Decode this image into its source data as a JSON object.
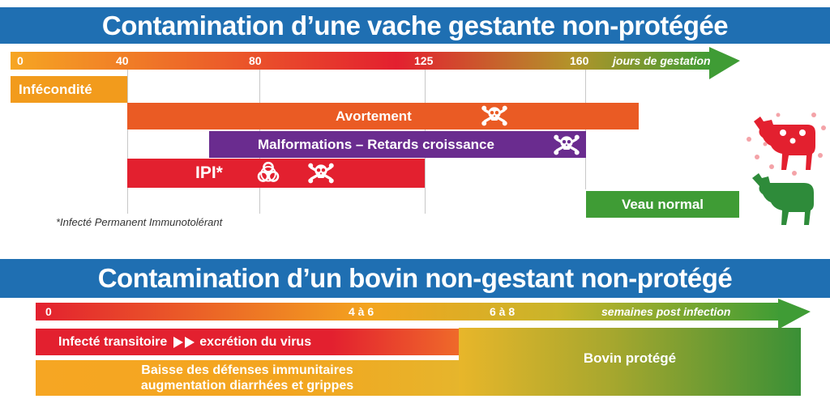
{
  "top": {
    "title": "Contamination d’une vache gestante non-protégée",
    "axis": {
      "ticks": [
        "0",
        "40",
        "80",
        "125",
        "160"
      ],
      "unit": "jours de gestation"
    },
    "bars": {
      "infecondite": "Infécondité",
      "avortement": "Avortement",
      "malformations": "Malformations – Retards croissance",
      "ipi": "IPI*",
      "veau_normal": "Veau normal"
    },
    "footnote": "*Infecté Permanent Immunotolérant"
  },
  "bottom": {
    "title": "Contamination d’un bovin non-gestant non-protégé",
    "axis": {
      "ticks": [
        "0",
        "4 à 6",
        "6 à 8"
      ],
      "unit": "semaines post infection"
    },
    "bars": {
      "infecte": "Infecté transitoire",
      "excretion": "excrétion du virus",
      "baisse_line1": "Baisse des défenses immunitaires",
      "baisse_line2": "augmentation diarrhées et grippes",
      "protege": "Bovin protégé"
    }
  },
  "icons": [
    "skull-crossbones-icon",
    "biohazard-icon",
    "infected-cow-icon",
    "healthy-cow-icon",
    "double-arrow-icon"
  ],
  "colors": {
    "banner": "#1f6fb2",
    "infecondite": "#f29b1c",
    "avortement": "#ea5b24",
    "malformations": "#6a2c8f",
    "ipi": "#e3202f",
    "veau_normal": "#3f9c35",
    "infected_cow": "#e3202f",
    "healthy_cow": "#2e8b3a"
  }
}
